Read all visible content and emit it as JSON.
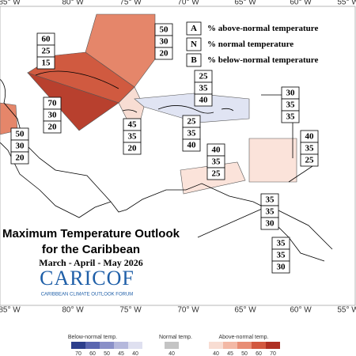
{
  "longitude_labels_top": [
    "85° W",
    "80° W",
    "75° W",
    "70° W",
    "65° W",
    "60° W",
    "55° W"
  ],
  "longitude_labels_bottom": [
    "85° W",
    "80° W",
    "75° W",
    "70° W",
    "65° W",
    "60° W",
    "55° W"
  ],
  "key": [
    {
      "letter": "A",
      "text": "% above-normal temperature"
    },
    {
      "letter": "N",
      "text": "% normal temperature"
    },
    {
      "letter": "B",
      "text": "% below-normal temperature"
    }
  ],
  "outlooks": [
    {
      "above": 50,
      "normal": 30,
      "below": 20
    },
    {
      "above": 60,
      "normal": 25,
      "below": 15
    },
    {
      "above": 70,
      "normal": 30,
      "below": 20
    },
    {
      "above": 50,
      "normal": 30,
      "below": 20
    },
    {
      "above": 45,
      "normal": 35,
      "below": 20
    },
    {
      "above": 25,
      "normal": 35,
      "below": 40
    },
    {
      "above": 25,
      "normal": 35,
      "below": 40
    },
    {
      "above": 30,
      "normal": 35,
      "below": 35
    },
    {
      "above": 40,
      "normal": 35,
      "below": 25
    },
    {
      "above": 40,
      "normal": 35,
      "below": 25
    },
    {
      "above": 35,
      "normal": 35,
      "below": 30
    },
    {
      "above": 35,
      "normal": 35,
      "below": 30
    }
  ],
  "title": {
    "line1": "Maximum Temperature Outlook",
    "line2": "for the Caribbean",
    "period": "March - April - May 2026"
  },
  "logo": {
    "name": "CARICOF",
    "subtitle": "CARIBBEAN CLIMATE OUTLOOK FORUM"
  },
  "colorbar": {
    "below": {
      "label": "Below-normal temp.",
      "ticks": [
        70,
        60,
        50,
        45,
        40
      ]
    },
    "normal": {
      "label": "Normal temp.",
      "ticks": [
        40
      ]
    },
    "above": {
      "label": "Above-normal temp.",
      "ticks": [
        40,
        45,
        50,
        60,
        70
      ]
    }
  }
}
